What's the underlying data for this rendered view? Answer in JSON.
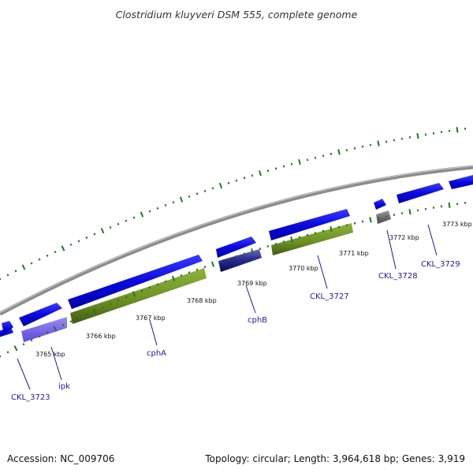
{
  "title": "Clostridium kluyveri DSM 555, complete genome",
  "footer": {
    "accession": "Accession: NC_009706",
    "summary": "Topology: circular; Length: 3,964,618 bp; Genes: 3,919"
  },
  "kbp_labels": [
    "3765 kbp",
    "3766 kbp",
    "3767 kbp",
    "3768 kbp",
    "3769 kbp",
    "3770 kbp",
    "3771 kbp",
    "3772 kbp",
    "3773 kbp"
  ],
  "gene_labels": [
    "CKL_3723",
    "ipk",
    "cphA",
    "cphB",
    "CKL_3727",
    "CKL_3728",
    "CKL_3729"
  ],
  "colors": {
    "forward_cds": "#0a0ae0",
    "gene_green": "#6b8e23",
    "gene_lavender": "#7b68ee",
    "gene_navy": "#191970",
    "gene_gray": "#6e6e6e",
    "backbone": "#8c8c8c",
    "tick_green": "#1f7a1f",
    "label_blue": "#1a1aa6"
  }
}
